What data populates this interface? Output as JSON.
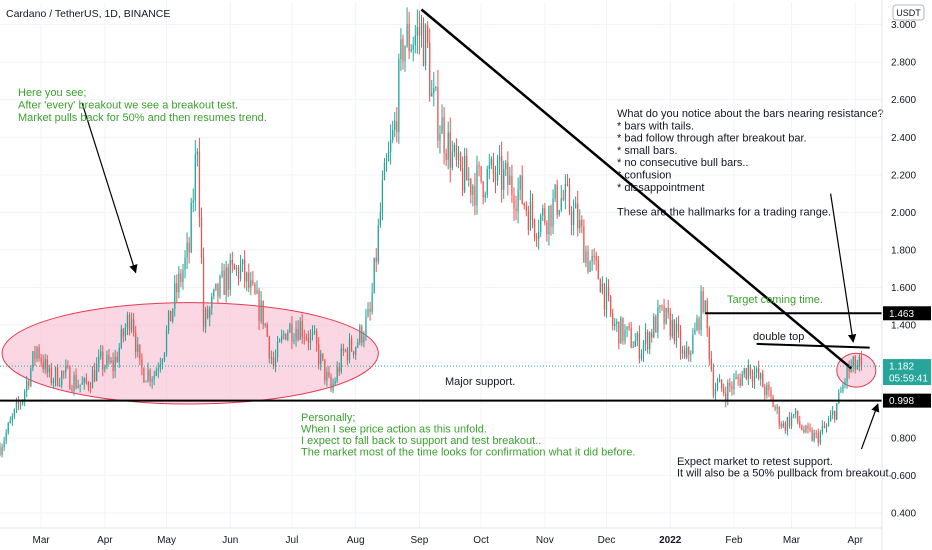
{
  "header": {
    "symbol_title": "Cardano / TetherUS, 1D, BINANCE",
    "currency_badge": "USDT"
  },
  "colors": {
    "bull": "#26a69a",
    "bear": "#ef5350",
    "annotation_green": "#3ba12f",
    "ellipse_fill": "#f8bbd0",
    "ellipse_stroke": "#e53950"
  },
  "chart_data": {
    "type": "candlestick",
    "title": "Cardano / TetherUS, 1D, BINANCE",
    "y_axis": {
      "position": "right",
      "ticks": [
        3.0,
        2.8,
        2.6,
        2.4,
        2.2,
        2.0,
        1.8,
        1.6,
        1.4,
        1.2,
        1.0,
        0.8,
        0.6,
        0.4
      ],
      "tick_labels": [
        "3.000",
        "2.800",
        "2.600",
        "2.400",
        "2.200",
        "2.000",
        "1.800",
        "1.600",
        "1.400",
        "1.200",
        "1.000",
        "0.800",
        "0.600",
        "0.400"
      ],
      "range": [
        0.32,
        3.12
      ]
    },
    "x_axis": {
      "labels": [
        "Mar",
        "Apr",
        "May",
        "Jun",
        "Jul",
        "Aug",
        "Sep",
        "Oct",
        "Nov",
        "Dec",
        "2022",
        "Feb",
        "Mar",
        "Apr"
      ],
      "label_dates": [
        "2021-03-01",
        "2021-04-01",
        "2021-05-01",
        "2021-06-01",
        "2021-07-01",
        "2021-08-01",
        "2021-09-01",
        "2021-10-01",
        "2021-11-01",
        "2021-12-01",
        "2022-01-01",
        "2022-02-01",
        "2022-03-01",
        "2022-04-01"
      ],
      "range": [
        "2021-02-09",
        "2022-04-14"
      ]
    },
    "price_path": [
      [
        "2021-02-09",
        0.75
      ],
      [
        "2021-02-20",
        1.02
      ],
      [
        "2021-02-27",
        1.28
      ],
      [
        "2021-03-05",
        1.12
      ],
      [
        "2021-03-12",
        1.14
      ],
      [
        "2021-03-22",
        1.07
      ],
      [
        "2021-03-30",
        1.2
      ],
      [
        "2021-04-05",
        1.18
      ],
      [
        "2021-04-14",
        1.48
      ],
      [
        "2021-04-18",
        1.16
      ],
      [
        "2021-04-25",
        1.14
      ],
      [
        "2021-04-30",
        1.3
      ],
      [
        "2021-05-05",
        1.55
      ],
      [
        "2021-05-12",
        1.8
      ],
      [
        "2021-05-16",
        2.4
      ],
      [
        "2021-05-19",
        1.4
      ],
      [
        "2021-05-25",
        1.55
      ],
      [
        "2021-05-30",
        1.65
      ],
      [
        "2021-06-06",
        1.7
      ],
      [
        "2021-06-12",
        1.55
      ],
      [
        "2021-06-17",
        1.45
      ],
      [
        "2021-06-22",
        1.18
      ],
      [
        "2021-06-28",
        1.38
      ],
      [
        "2021-07-05",
        1.4
      ],
      [
        "2021-07-12",
        1.3
      ],
      [
        "2021-07-20",
        1.05
      ],
      [
        "2021-07-26",
        1.25
      ],
      [
        "2021-08-01",
        1.3
      ],
      [
        "2021-08-08",
        1.45
      ],
      [
        "2021-08-14",
        2.1
      ],
      [
        "2021-08-20",
        2.45
      ],
      [
        "2021-08-24",
        2.9
      ],
      [
        "2021-09-02",
        2.96
      ],
      [
        "2021-09-05",
        2.85
      ],
      [
        "2021-09-07",
        2.6
      ],
      [
        "2021-09-12",
        2.45
      ],
      [
        "2021-09-20",
        2.2
      ],
      [
        "2021-09-28",
        2.15
      ],
      [
        "2021-10-05",
        2.2
      ],
      [
        "2021-10-12",
        2.18
      ],
      [
        "2021-10-20",
        2.1
      ],
      [
        "2021-10-27",
        1.95
      ],
      [
        "2021-11-03",
        2.0
      ],
      [
        "2021-11-08",
        2.08
      ],
      [
        "2021-11-12",
        2.05
      ],
      [
        "2021-11-17",
        1.95
      ],
      [
        "2021-11-22",
        1.75
      ],
      [
        "2021-11-28",
        1.65
      ],
      [
        "2021-12-04",
        1.4
      ],
      [
        "2021-12-10",
        1.35
      ],
      [
        "2021-12-18",
        1.28
      ],
      [
        "2021-12-27",
        1.45
      ],
      [
        "2022-01-03",
        1.38
      ],
      [
        "2022-01-08",
        1.2
      ],
      [
        "2022-01-13",
        1.35
      ],
      [
        "2022-01-17",
        1.55
      ],
      [
        "2022-01-22",
        1.08
      ],
      [
        "2022-01-28",
        1.05
      ],
      [
        "2022-02-04",
        1.12
      ],
      [
        "2022-02-08",
        1.18
      ],
      [
        "2022-02-14",
        1.1
      ],
      [
        "2022-02-20",
        0.98
      ],
      [
        "2022-02-25",
        0.86
      ],
      [
        "2022-03-02",
        0.92
      ],
      [
        "2022-03-08",
        0.82
      ],
      [
        "2022-03-13",
        0.8
      ],
      [
        "2022-03-19",
        0.87
      ],
      [
        "2022-03-24",
        1.0
      ],
      [
        "2022-03-28",
        1.15
      ],
      [
        "2022-04-01",
        1.18
      ],
      [
        "2022-04-04",
        1.182
      ]
    ],
    "seed": 7,
    "levels": [
      {
        "value": 1.463,
        "label": "1.463"
      },
      {
        "value": 0.998,
        "label": "0.998"
      }
    ],
    "current_price": {
      "value": 1.182,
      "label": "1.182",
      "countdown": "05:59:41"
    }
  },
  "annotations": {
    "breakout_note": [
      "Here you see;",
      "After 'every' breakout we see a breakout test.",
      "Market pulls back for 50% and then resumes trend."
    ],
    "resistance_note": [
      "What do you notice about the bars nearing resistance?",
      "* bars with tails.",
      "* bad follow through after breakout bar.",
      "* small bars.",
      "* no consecutive bull bars..",
      "* confusion",
      "* dissappointment",
      "",
      "These are the hallmarks for a trading range."
    ],
    "target_note": "Target coming time.",
    "double_top_label": "double top",
    "major_support_label": "Major support.",
    "personal_note": [
      "Personally;",
      "When I see price action as this unfold.",
      "I expect to fall back to support and test breakout..",
      "The market most of the time looks for confirmation what it did before."
    ],
    "retest_note": [
      "Expect market to retest support.",
      "It will also be a 50% pullback from breakout."
    ]
  }
}
